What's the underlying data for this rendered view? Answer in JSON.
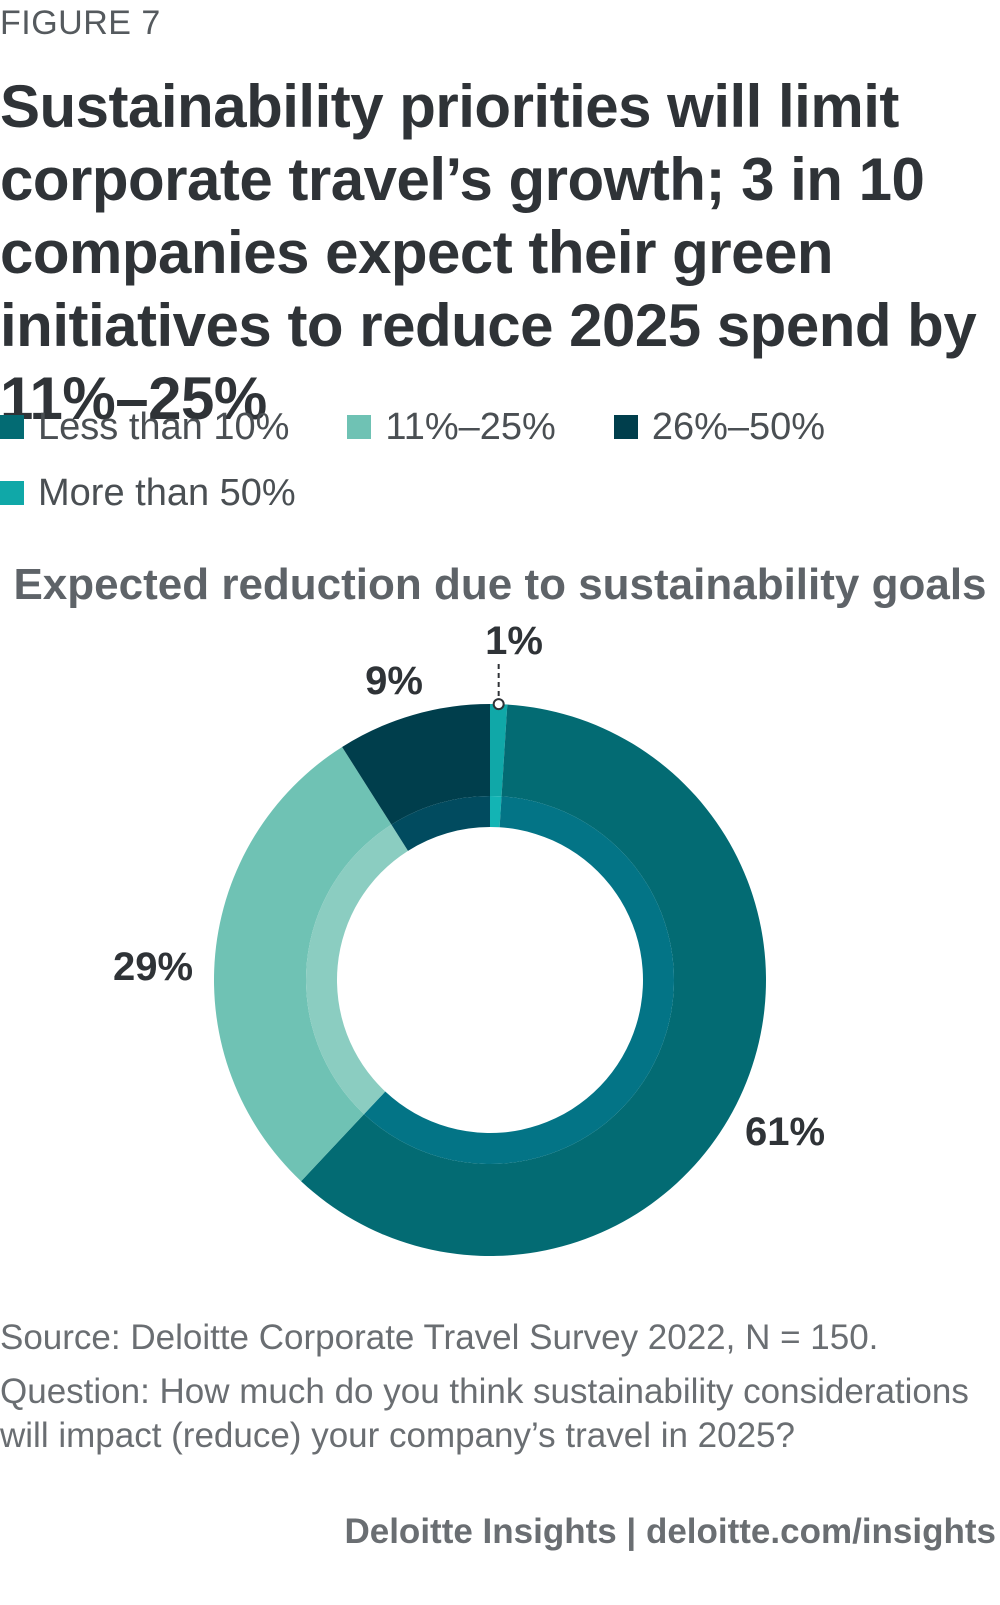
{
  "figure_label": "FIGURE 7",
  "title": "Sustainability priorities will limit corporate travel’s growth; 3 in 10 companies expect their green initiatives to reduce 2025 spend by 11%–25%",
  "chart_data": {
    "type": "pie",
    "variant": "donut",
    "title": "Expected reduction due to sustainability goals",
    "categories": [
      "Less than 10%",
      "11%–25%",
      "26%–50%",
      "More than 50%"
    ],
    "values": [
      61,
      29,
      9,
      1
    ],
    "labels": [
      "61%",
      "29%",
      "9%",
      "1%"
    ],
    "colors": [
      "#036b73",
      "#6fc2b4",
      "#003e4c",
      "#10a8a8"
    ],
    "inner_colors": [
      "#037486",
      "#8bcdc1",
      "#014b5f",
      "#13b4b4"
    ],
    "legend_position": "top-left"
  },
  "source": "Source: Deloitte Corporate Travel Survey 2022, N = 150.",
  "question": "Question: How much do you think sustainability considerations will impact (reduce) your company’s travel in 2025?",
  "footer": "Deloitte Insights | deloitte.com/insights"
}
